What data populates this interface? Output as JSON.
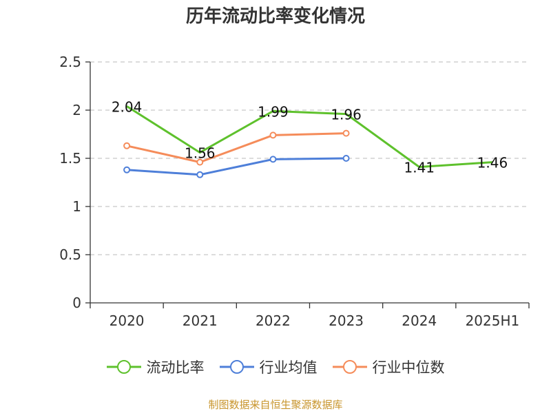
{
  "chart_data": {
    "type": "line",
    "title": "历年流动比率变化情况",
    "categories": [
      "2020",
      "2021",
      "2022",
      "2023",
      "2024",
      "2025H1"
    ],
    "ylim": [
      0,
      2.5
    ],
    "yticks": [
      "0",
      "0.5",
      "1",
      "1.5",
      "2",
      "2.5"
    ],
    "grid": true,
    "legend_position": "bottom",
    "series": [
      {
        "name": "流动比率",
        "color": "#5ec12c",
        "values": [
          2.04,
          1.56,
          1.99,
          1.96,
          1.41,
          1.46
        ],
        "labels": [
          "2.04",
          "1.56",
          "1.99",
          "1.96",
          "1.41",
          "1.46"
        ]
      },
      {
        "name": "行业均值",
        "color": "#4e7fd9",
        "values": [
          1.38,
          1.33,
          1.49,
          1.5,
          null,
          null
        ]
      },
      {
        "name": "行业中位数",
        "color": "#f58c5a",
        "values": [
          1.63,
          1.46,
          1.74,
          1.76,
          null,
          null
        ]
      }
    ],
    "source_text": "制图数据来自恒生聚源数据库"
  }
}
